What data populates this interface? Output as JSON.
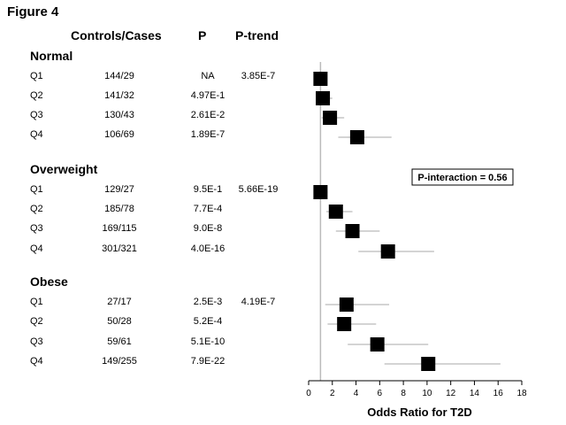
{
  "figure_title": "Figure 4",
  "headers": {
    "controls_cases": "Controls/Cases",
    "p": "P",
    "p_trend": "P-trend"
  },
  "groups": [
    {
      "name": "Normal",
      "rows": [
        {
          "q": "Q1",
          "cc": "144/29",
          "p": "NA",
          "ptrend": "3.85E-7"
        },
        {
          "q": "Q2",
          "cc": "141/32",
          "p": "4.97E-1",
          "ptrend": ""
        },
        {
          "q": "Q3",
          "cc": "130/43",
          "p": "2.61E-2",
          "ptrend": ""
        },
        {
          "q": "Q4",
          "cc": "106/69",
          "p": "1.89E-7",
          "ptrend": ""
        }
      ]
    },
    {
      "name": "Overweight",
      "rows": [
        {
          "q": "Q1",
          "cc": "129/27",
          "p": "9.5E-1",
          "ptrend": "5.66E-19"
        },
        {
          "q": "Q2",
          "cc": "185/78",
          "p": "7.7E-4",
          "ptrend": ""
        },
        {
          "q": "Q3",
          "cc": "169/115",
          "p": "9.0E-8",
          "ptrend": ""
        },
        {
          "q": "Q4",
          "cc": "301/321",
          "p": "4.0E-16",
          "ptrend": ""
        }
      ]
    },
    {
      "name": "Obese",
      "rows": [
        {
          "q": "Q1",
          "cc": "27/17",
          "p": "2.5E-3",
          "ptrend": "4.19E-7"
        },
        {
          "q": "Q2",
          "cc": "50/28",
          "p": "5.2E-4",
          "ptrend": ""
        },
        {
          "q": "Q3",
          "cc": "59/61",
          "p": "5.1E-10",
          "ptrend": ""
        },
        {
          "q": "Q4",
          "cc": "149/255",
          "p": "7.9E-22",
          "ptrend": ""
        }
      ]
    }
  ],
  "interaction_label": "P-interaction = 0.56",
  "chart_data": {
    "type": "scatter",
    "subtype": "forest-plot",
    "title": "",
    "xlabel": "Odds Ratio for T2D",
    "xlim": [
      0,
      18
    ],
    "xticks": [
      0,
      2,
      4,
      6,
      8,
      10,
      12,
      14,
      16,
      18
    ],
    "reference_line": 1,
    "marker": "square",
    "marker_color": "#000000",
    "ci_color": "#aaaaaa",
    "reference_color": "#bbbbbb",
    "points": [
      {
        "group": "Normal",
        "q": "Q1",
        "or": 1.0,
        "lo": 0.6,
        "hi": 1.4
      },
      {
        "group": "Normal",
        "q": "Q2",
        "or": 1.2,
        "lo": 0.7,
        "hi": 2.0
      },
      {
        "group": "Normal",
        "q": "Q3",
        "or": 1.8,
        "lo": 1.1,
        "hi": 3.0
      },
      {
        "group": "Normal",
        "q": "Q4",
        "or": 4.1,
        "lo": 2.5,
        "hi": 7.0
      },
      {
        "group": "Overweight",
        "q": "Q1",
        "or": 1.0,
        "lo": 0.6,
        "hi": 1.6
      },
      {
        "group": "Overweight",
        "q": "Q2",
        "or": 2.3,
        "lo": 1.5,
        "hi": 3.7
      },
      {
        "group": "Overweight",
        "q": "Q3",
        "or": 3.7,
        "lo": 2.3,
        "hi": 6.0
      },
      {
        "group": "Overweight",
        "q": "Q4",
        "or": 6.7,
        "lo": 4.2,
        "hi": 10.6
      },
      {
        "group": "Obese",
        "q": "Q1",
        "or": 3.2,
        "lo": 1.4,
        "hi": 6.8
      },
      {
        "group": "Obese",
        "q": "Q2",
        "or": 3.0,
        "lo": 1.6,
        "hi": 5.7
      },
      {
        "group": "Obese",
        "q": "Q3",
        "or": 5.8,
        "lo": 3.3,
        "hi": 10.1
      },
      {
        "group": "Obese",
        "q": "Q4",
        "or": 10.1,
        "lo": 6.4,
        "hi": 16.2
      }
    ]
  }
}
